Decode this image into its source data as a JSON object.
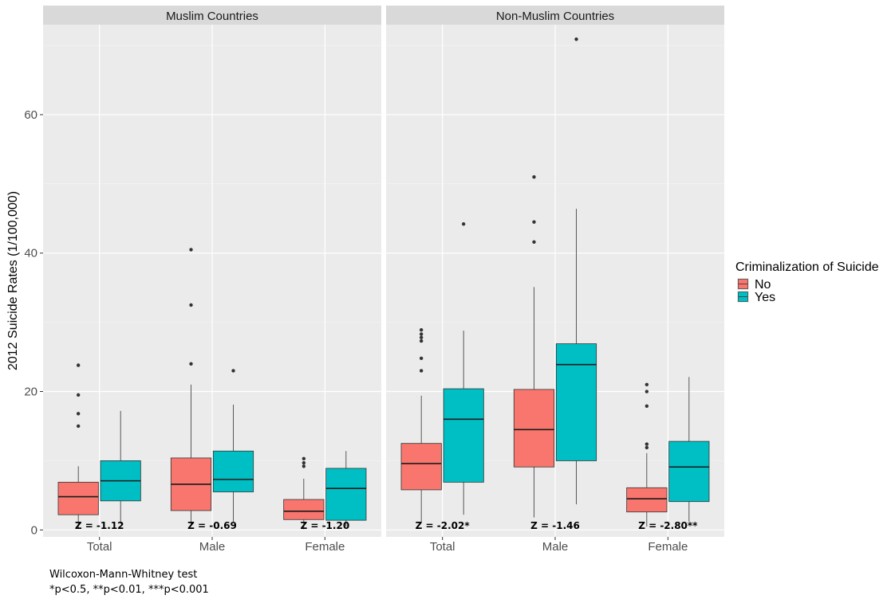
{
  "chart_data": {
    "type": "boxplot",
    "ylabel": "2012 Suicide Rates (1/100,000)",
    "xlabel": "",
    "ylim": [
      -1,
      73
    ],
    "y_ticks": [
      0,
      20,
      40,
      60
    ],
    "categories": [
      "Total",
      "Male",
      "Female"
    ],
    "legend": {
      "title": "Criminalization of Suicide",
      "position": "right",
      "entries": [
        {
          "label": "No",
          "color": "#F8766D"
        },
        {
          "label": "Yes",
          "color": "#00BFC4"
        }
      ]
    },
    "panels": [
      {
        "title": "Muslim Countries",
        "groups": [
          {
            "category": "Total",
            "z_label": "Z = -1.12",
            "boxes": [
              {
                "series": "No",
                "whisker_low": 0.3,
                "q1": 2.2,
                "median": 4.8,
                "q3": 6.9,
                "whisker_high": 9.2,
                "outliers": [
                  15.0,
                  16.8,
                  19.5,
                  23.8
                ]
              },
              {
                "series": "Yes",
                "whisker_low": 0.9,
                "q1": 4.2,
                "median": 7.1,
                "q3": 10.0,
                "whisker_high": 17.2,
                "outliers": []
              }
            ]
          },
          {
            "category": "Male",
            "z_label": "Z = -0.69",
            "boxes": [
              {
                "series": "No",
                "whisker_low": 0.6,
                "q1": 2.8,
                "median": 6.6,
                "q3": 10.4,
                "whisker_high": 21.0,
                "outliers": [
                  24.0,
                  32.5,
                  40.5
                ]
              },
              {
                "series": "Yes",
                "whisker_low": 1.2,
                "q1": 5.5,
                "median": 7.3,
                "q3": 11.4,
                "whisker_high": 18.1,
                "outliers": [
                  23.0
                ]
              }
            ]
          },
          {
            "category": "Female",
            "z_label": "Z = -1.20",
            "boxes": [
              {
                "series": "No",
                "whisker_low": 0.1,
                "q1": 1.5,
                "median": 2.7,
                "q3": 4.4,
                "whisker_high": 7.4,
                "outliers": [
                  9.2,
                  9.7,
                  10.3
                ]
              },
              {
                "series": "Yes",
                "whisker_low": 0.5,
                "q1": 1.4,
                "median": 6.0,
                "q3": 8.9,
                "whisker_high": 11.4,
                "outliers": []
              }
            ]
          }
        ]
      },
      {
        "title": "Non-Muslim Countries",
        "groups": [
          {
            "category": "Total",
            "z_label": "Z = -2.02*",
            "boxes": [
              {
                "series": "No",
                "whisker_low": 1.1,
                "q1": 5.8,
                "median": 9.6,
                "q3": 12.5,
                "whisker_high": 19.4,
                "outliers": [
                  23.0,
                  24.8,
                  27.3,
                  27.8,
                  28.3,
                  28.9
                ]
              },
              {
                "series": "Yes",
                "whisker_low": 2.2,
                "q1": 6.9,
                "median": 16.0,
                "q3": 20.4,
                "whisker_high": 28.8,
                "outliers": [
                  44.2
                ]
              }
            ]
          },
          {
            "category": "Male",
            "z_label": "Z = -1.46",
            "boxes": [
              {
                "series": "No",
                "whisker_low": 1.8,
                "q1": 9.1,
                "median": 14.5,
                "q3": 20.3,
                "whisker_high": 35.1,
                "outliers": [
                  41.6,
                  44.5,
                  51.0
                ]
              },
              {
                "series": "Yes",
                "whisker_low": 3.7,
                "q1": 10.0,
                "median": 23.9,
                "q3": 26.9,
                "whisker_high": 46.4,
                "outliers": [
                  70.9
                ]
              }
            ]
          },
          {
            "category": "Female",
            "z_label": "Z = -2.80**",
            "boxes": [
              {
                "series": "No",
                "whisker_low": 0.5,
                "q1": 2.6,
                "median": 4.5,
                "q3": 6.1,
                "whisker_high": 11.1,
                "outliers": [
                  11.9,
                  12.4,
                  17.9,
                  20.0,
                  21.0
                ]
              },
              {
                "series": "Yes",
                "whisker_low": 1.2,
                "q1": 4.1,
                "median": 9.1,
                "q3": 12.8,
                "whisker_high": 22.1,
                "outliers": []
              }
            ]
          }
        ]
      }
    ],
    "grid": true
  },
  "caption": {
    "line1": "Wilcoxon-Mann-Whitney test",
    "line2": "*p<0.5, **p<0.01, ***p<0.001"
  }
}
